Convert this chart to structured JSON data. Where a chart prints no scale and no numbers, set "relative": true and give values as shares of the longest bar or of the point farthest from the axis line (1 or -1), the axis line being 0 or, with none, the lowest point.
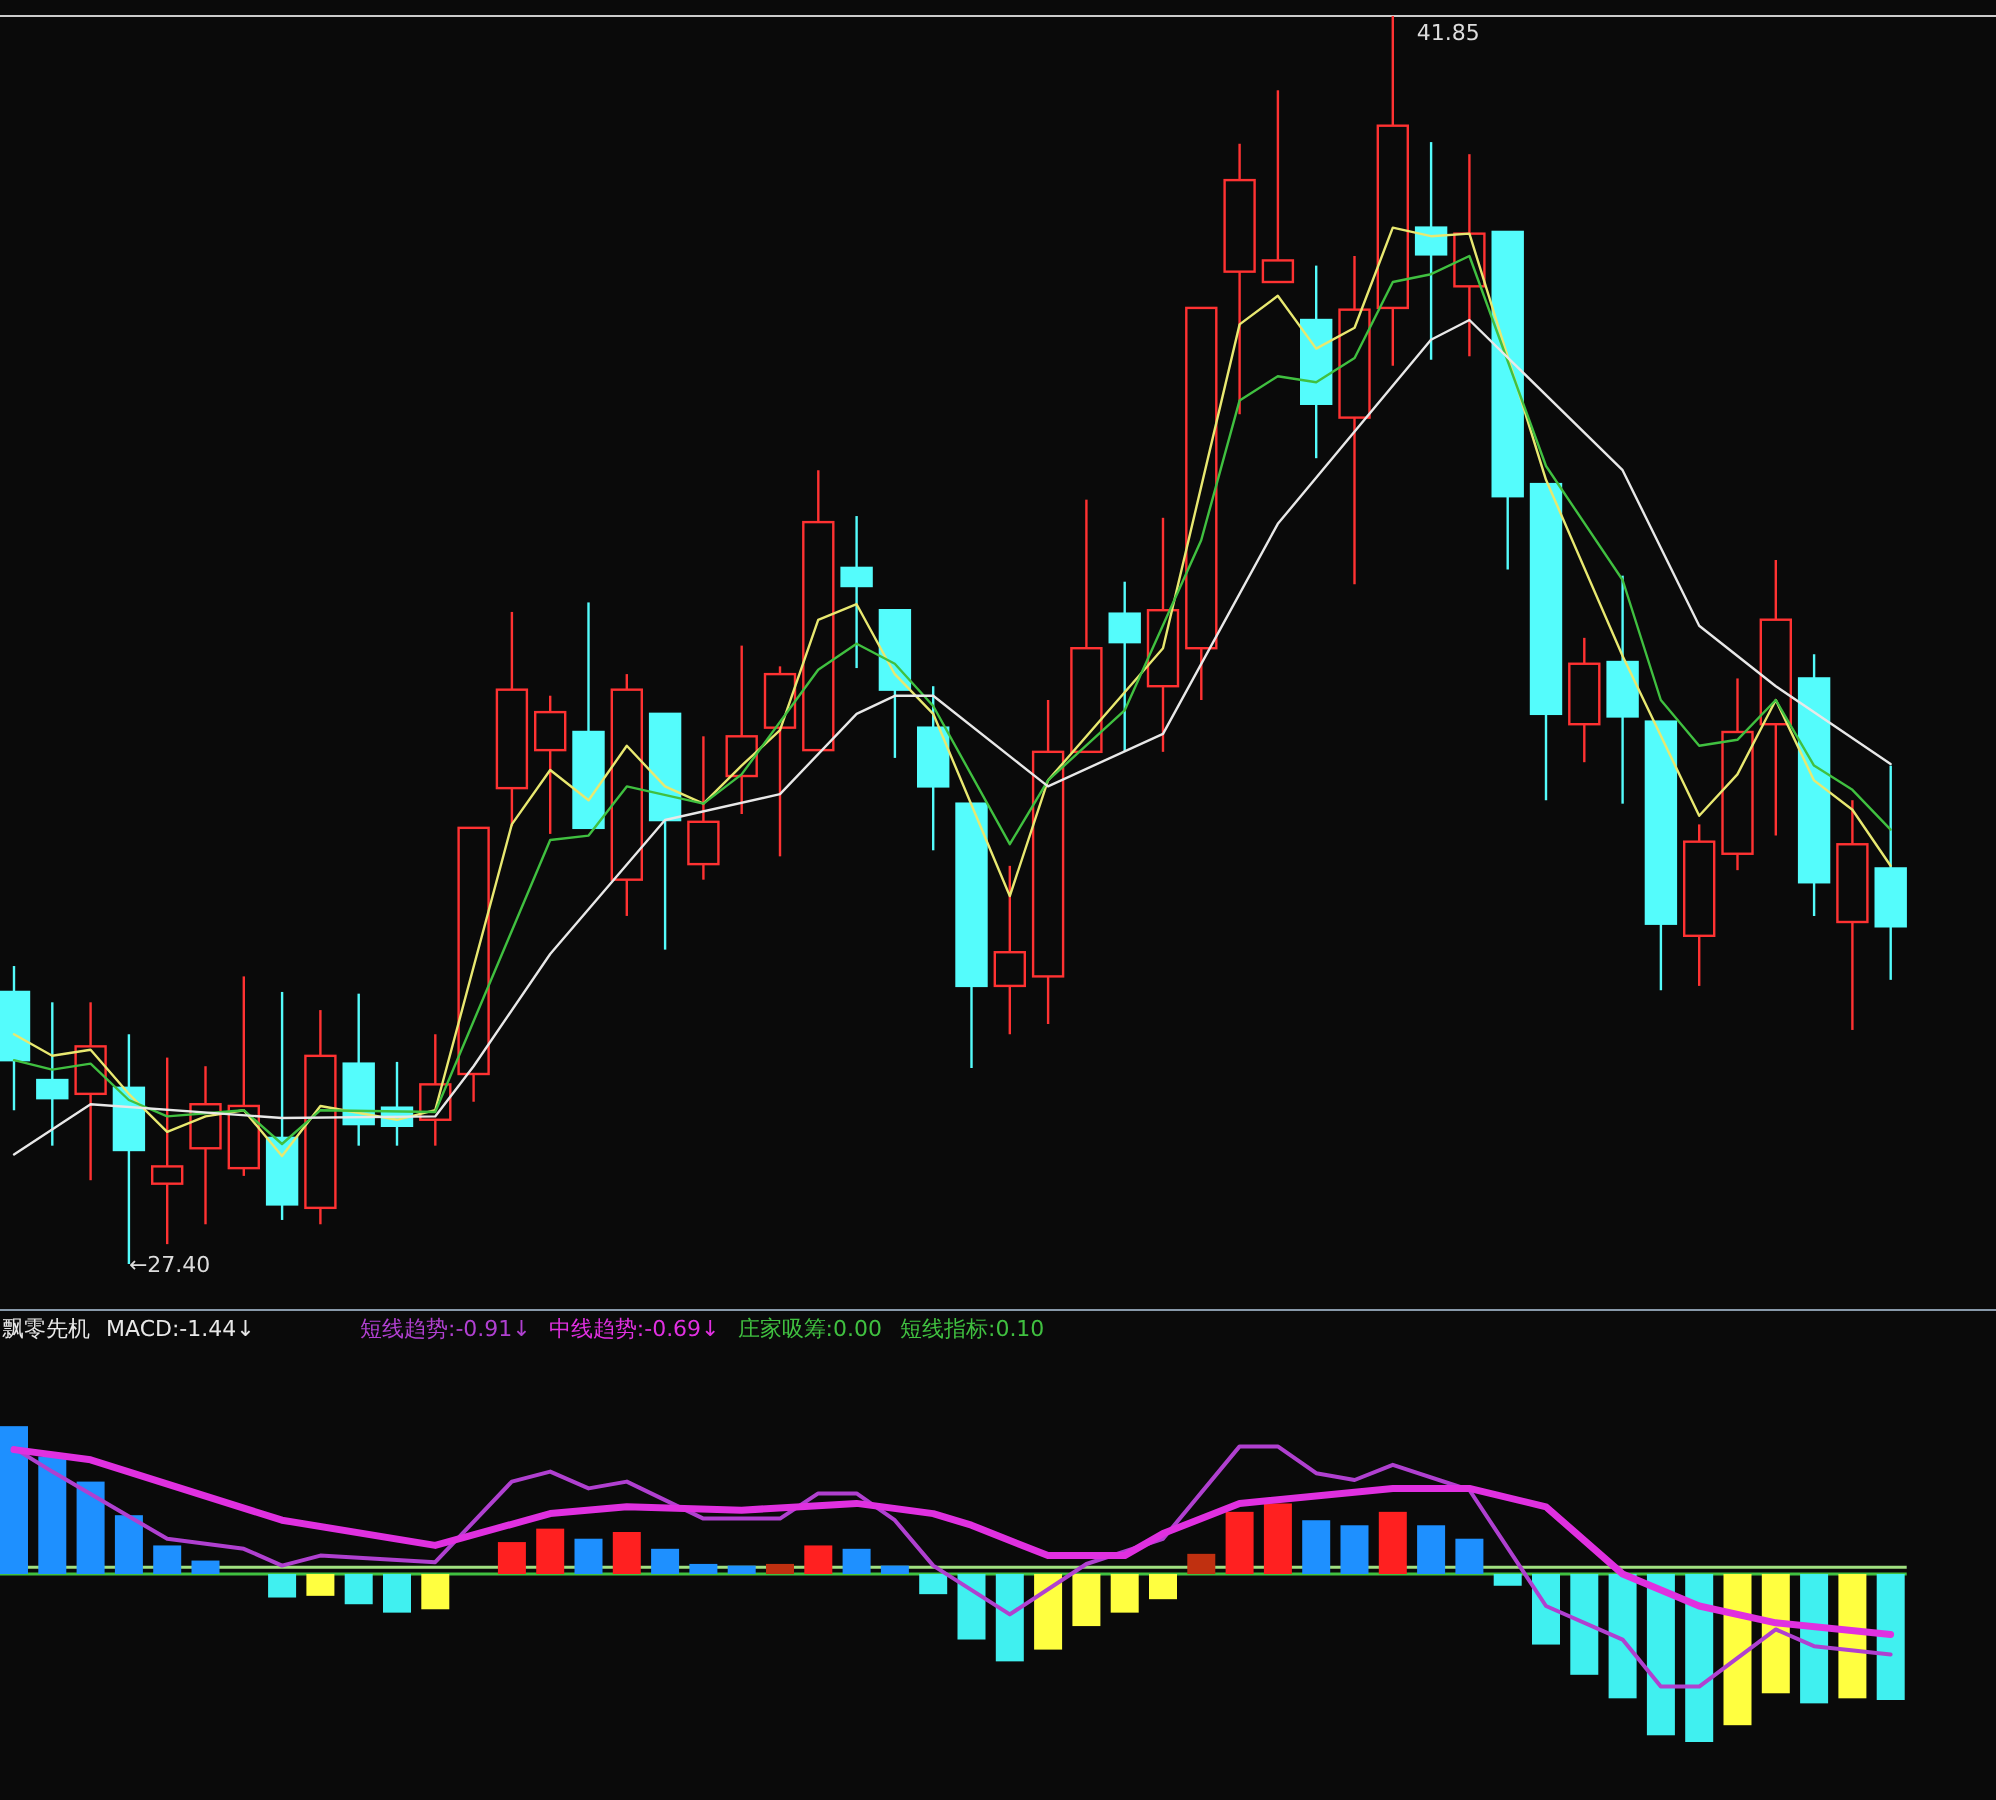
{
  "chart_data": [
    {
      "type": "candlestick",
      "categories": [
        null,
        null,
        null,
        null,
        null,
        null,
        null,
        null,
        null,
        null,
        null,
        null,
        null,
        null,
        null,
        null,
        null,
        null,
        null,
        null,
        null,
        null,
        null,
        null,
        null,
        null,
        null,
        null,
        null,
        null,
        null,
        null,
        null,
        null,
        null,
        null,
        null,
        null,
        null,
        null,
        null,
        null,
        null,
        null,
        null,
        null,
        null,
        null,
        null,
        null
      ],
      "ohlc": [
        [
          30.55,
          30.85,
          29.18,
          29.76
        ],
        [
          29.53,
          30.43,
          28.77,
          29.32
        ],
        [
          29.37,
          30.43,
          28.37,
          29.92
        ],
        [
          29.44,
          30.06,
          27.4,
          28.72
        ],
        [
          28.33,
          29.79,
          27.63,
          28.53
        ],
        [
          28.74,
          29.69,
          27.86,
          29.25
        ],
        [
          28.51,
          30.73,
          28.42,
          29.23
        ],
        [
          28.86,
          30.55,
          27.91,
          28.09
        ],
        [
          28.05,
          30.34,
          27.86,
          29.81
        ],
        [
          29.72,
          30.53,
          28.77,
          29.02
        ],
        [
          29.21,
          29.74,
          28.77,
          29.0
        ],
        [
          29.07,
          30.06,
          28.77,
          29.48
        ],
        [
          29.6,
          32.45,
          29.28,
          32.45
        ],
        [
          32.91,
          34.95,
          32.47,
          34.05
        ],
        [
          33.35,
          33.98,
          32.38,
          33.79
        ],
        [
          33.56,
          35.06,
          32.45,
          32.45
        ],
        [
          31.85,
          34.23,
          31.43,
          34.05
        ],
        [
          33.77,
          33.77,
          31.04,
          32.54
        ],
        [
          32.03,
          33.51,
          31.85,
          32.52
        ],
        [
          33.05,
          34.56,
          32.61,
          33.51
        ],
        [
          33.61,
          34.32,
          32.12,
          34.23
        ],
        [
          33.35,
          36.59,
          33.35,
          35.99
        ],
        [
          35.46,
          36.06,
          34.3,
          35.25
        ],
        [
          34.97,
          34.97,
          33.26,
          34.05
        ],
        [
          33.61,
          34.09,
          32.19,
          32.93
        ],
        [
          32.73,
          32.73,
          29.67,
          30.62
        ],
        [
          30.62,
          32.01,
          30.06,
          31.01
        ],
        [
          30.73,
          33.93,
          30.18,
          33.33
        ],
        [
          33.33,
          36.25,
          33.33,
          34.53
        ],
        [
          34.93,
          35.3,
          33.33,
          34.6
        ],
        [
          34.09,
          36.04,
          33.33,
          34.97
        ],
        [
          34.53,
          38.47,
          33.93,
          38.47
        ],
        [
          38.89,
          40.37,
          37.24,
          39.95
        ],
        [
          38.77,
          40.99,
          38.77,
          39.02
        ],
        [
          38.33,
          38.96,
          36.73,
          37.36
        ],
        [
          37.2,
          39.07,
          35.27,
          38.45
        ],
        [
          38.47,
          41.85,
          37.8,
          40.58
        ],
        [
          39.4,
          40.39,
          37.87,
          39.09
        ],
        [
          38.72,
          40.25,
          37.91,
          39.33
        ],
        [
          39.35,
          39.35,
          35.44,
          36.29
        ],
        [
          36.43,
          36.43,
          32.77,
          33.77
        ],
        [
          33.65,
          34.65,
          33.21,
          34.35
        ],
        [
          34.37,
          35.37,
          32.73,
          33.74
        ],
        [
          33.68,
          33.68,
          30.57,
          31.34
        ],
        [
          31.2,
          32.49,
          30.62,
          32.29
        ],
        [
          32.15,
          34.18,
          31.96,
          33.56
        ],
        [
          33.65,
          35.55,
          32.36,
          34.86
        ],
        [
          34.18,
          34.46,
          31.43,
          31.82
        ],
        [
          31.36,
          32.77,
          30.11,
          32.26
        ],
        [
          31.98,
          33.17,
          30.69,
          31.31
        ]
      ],
      "series": [
        {
          "type": "line",
          "color": "#e8e870",
          "values": [
            30.06,
            29.81,
            29.88,
            29.37,
            28.93,
            29.11,
            29.18,
            28.65,
            29.23,
            null,
            29.07,
            29.18,
            null,
            32.49,
            33.12,
            32.77,
            33.4,
            32.93,
            32.73,
            33.17,
            33.58,
            34.86,
            35.04,
            34.23,
            33.77,
            null,
            31.66,
            33.0,
            null,
            null,
            34.53,
            null,
            38.28,
            38.61,
            38.0,
            38.24,
            39.4,
            39.3,
            39.33,
            null,
            36.48,
            null,
            34.44,
            null,
            32.59,
            33.07,
            33.93,
            33.0,
            32.66,
            32.01
          ]
        },
        {
          "type": "line",
          "color": "#40c040",
          "values": [
            29.76,
            29.65,
            29.72,
            29.3,
            29.11,
            null,
            29.18,
            28.79,
            29.18,
            null,
            null,
            29.16,
            null,
            null,
            32.31,
            32.36,
            32.93,
            null,
            32.73,
            33.07,
            null,
            34.28,
            34.58,
            34.35,
            33.86,
            null,
            32.26,
            33.0,
            null,
            33.81,
            null,
            35.78,
            37.4,
            37.68,
            37.61,
            37.89,
            38.77,
            38.86,
            39.07,
            null,
            36.64,
            null,
            35.32,
            33.93,
            33.4,
            33.47,
            33.93,
            33.17,
            32.89,
            32.43
          ]
        },
        {
          "type": "line",
          "color": "#e8e8e8",
          "values": [
            28.67,
            null,
            29.25,
            null,
            null,
            null,
            null,
            29.09,
            null,
            null,
            null,
            29.11,
            29.69,
            null,
            30.99,
            null,
            null,
            32.54,
            null,
            null,
            32.84,
            null,
            33.77,
            33.98,
            33.98,
            null,
            null,
            32.93,
            null,
            null,
            33.54,
            null,
            null,
            35.97,
            null,
            null,
            null,
            38.1,
            38.33,
            null,
            null,
            null,
            36.59,
            null,
            34.79,
            null,
            34.09,
            null,
            null,
            33.19
          ]
        }
      ],
      "annotations": [
        "←27.40",
        "41.85"
      ]
    },
    {
      "type": "bar",
      "relative": true,
      "title": "飘零先机",
      "subtitle": "MACD:-1.44↓",
      "categories": [
        null,
        null,
        null,
        null,
        null,
        null,
        null,
        null,
        null,
        null,
        null,
        null,
        null,
        null,
        null,
        null,
        null,
        null,
        null,
        null,
        null,
        null,
        null,
        null,
        null,
        null,
        null,
        null,
        null,
        null,
        null,
        null,
        null,
        null,
        null,
        null,
        null,
        null,
        null,
        null,
        null,
        null,
        null,
        null,
        null,
        null,
        null,
        null,
        null,
        null
      ],
      "series": [
        {
          "type": "bar",
          "values": [
            0.88,
            0.7,
            0.55,
            0.35,
            0.17,
            0.08,
            null,
            -0.14,
            -0.13,
            -0.18,
            -0.23,
            -0.21,
            null,
            0.19,
            0.27,
            0.21,
            0.25,
            0.15,
            0.06,
            0.05,
            0.06,
            0.17,
            0.15,
            0.05,
            -0.12,
            -0.39,
            -0.52,
            -0.45,
            -0.31,
            -0.23,
            -0.15,
            0.12,
            0.37,
            0.42,
            0.32,
            0.29,
            0.37,
            0.29,
            0.21,
            -0.07,
            -0.42,
            -0.6,
            -0.74,
            -0.96,
            -1,
            -0.9,
            -0.71,
            -0.77,
            -0.74,
            -0.75
          ],
          "colors": [
            "#1e90ff",
            "#1e90ff",
            "#1e90ff",
            "#1e90ff",
            "#1e90ff",
            "#1e90ff",
            null,
            "#40f0f0",
            "#ffff40",
            "#40f0f0",
            "#40f0f0",
            "#ffff40",
            null,
            "#ff2020",
            "#ff2020",
            "#1e90ff",
            "#ff2020",
            "#1e90ff",
            "#1e90ff",
            "#1e90ff",
            "#c03010",
            "#ff2020",
            "#1e90ff",
            "#1e90ff",
            "#40f0f0",
            "#40f0f0",
            "#40f0f0",
            "#ffff40",
            "#ffff40",
            "#ffff40",
            "#ffff40",
            "#c03010",
            "#ff2020",
            "#ff2020",
            "#1e90ff",
            "#1e90ff",
            "#ff2020",
            "#1e90ff",
            "#1e90ff",
            "#40f0f0",
            "#40f0f0",
            "#40f0f0",
            "#40f0f0",
            "#40f0f0",
            "#40f0f0",
            "#ffff40",
            "#ffff40",
            "#40f0f0",
            "#ffff40",
            "#40f0f0"
          ]
        },
        {
          "name": "短线趋势:-0.91↓",
          "type": "line",
          "color": "#b040d0",
          "values": [
            0.75,
            0.61,
            null,
            null,
            0.21,
            null,
            0.15,
            0.05,
            0.11,
            null,
            null,
            0.07,
            null,
            0.55,
            0.61,
            0.51,
            0.55,
            null,
            0.33,
            null,
            0.33,
            0.48,
            0.48,
            0.32,
            0.05,
            null,
            -0.24,
            null,
            0.06,
            null,
            0.21,
            null,
            0.76,
            0.76,
            0.6,
            0.56,
            0.65,
            null,
            0.5,
            null,
            -0.19,
            null,
            -0.39,
            -0.67,
            -0.67,
            null,
            -0.33,
            -0.43,
            null,
            -0.48
          ]
        },
        {
          "name": "中线趋势:-0.69↓",
          "type": "line",
          "color": "#e030e0",
          "values": [
            0.74,
            null,
            0.68,
            null,
            null,
            null,
            null,
            0.32,
            null,
            null,
            null,
            0.17,
            null,
            null,
            0.36,
            null,
            0.4,
            null,
            null,
            0.38,
            null,
            null,
            0.42,
            null,
            0.36,
            0.29,
            null,
            0.11,
            null,
            0.11,
            0.24,
            null,
            0.42,
            null,
            null,
            null,
            0.51,
            null,
            0.51,
            null,
            0.4,
            null,
            0,
            null,
            -0.19,
            null,
            -0.29,
            null,
            null,
            -0.36
          ]
        }
      ],
      "annotations": [
        "庄家吸筹:0.00",
        "短线指标:0.10"
      ],
      "ref_lines": [
        {
          "axis": "y",
          "value": 0,
          "color": "#40c040"
        },
        {
          "axis": "y",
          "value": 0.04,
          "color": "#a0e080"
        }
      ]
    }
  ]
}
